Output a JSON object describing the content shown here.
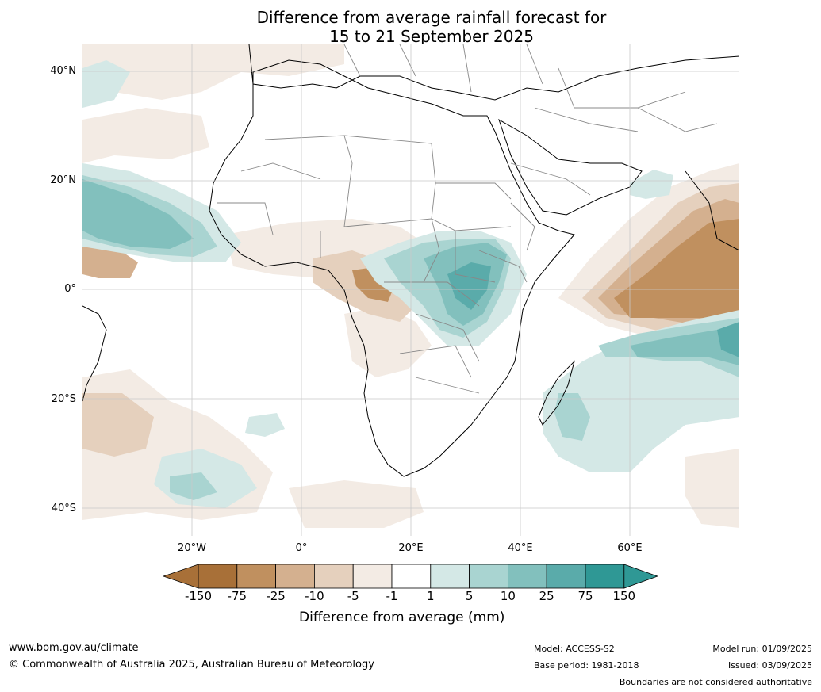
{
  "title_line1": "Difference from average rainfall forecast for",
  "title_line2": "15 to 21 September 2025",
  "lat_labels": [
    "40°N",
    "20°N",
    "0°",
    "20°S",
    "40°S"
  ],
  "lon_labels": [
    "20°W",
    "0°",
    "20°E",
    "40°E",
    "60°E"
  ],
  "colorbar": {
    "title": "Difference from average (mm)",
    "tick_labels": [
      "-150",
      "-75",
      "-25",
      "-10",
      "-5",
      "-1",
      "1",
      "5",
      "10",
      "25",
      "75",
      "150"
    ],
    "colors": [
      "#a87038",
      "#c0905f",
      "#d4b08f",
      "#e5d0bd",
      "#f3ebe4",
      "#ffffff",
      "#d4e8e6",
      "#a9d4d1",
      "#82c0bd",
      "#5aabaa",
      "#2f9895"
    ]
  },
  "footer": {
    "site": "www.bom.gov.au/climate",
    "copyright": "© Commonwealth of Australia 2025, Australian Bureau of Meteorology",
    "model": "Model: ACCESS-S2",
    "base_period": "Base period: 1981-2018",
    "model_run": "Model run: 01/09/2025",
    "issued": "Issued: 03/09/2025",
    "disclaimer": "Boundaries are not considered authoritative"
  }
}
